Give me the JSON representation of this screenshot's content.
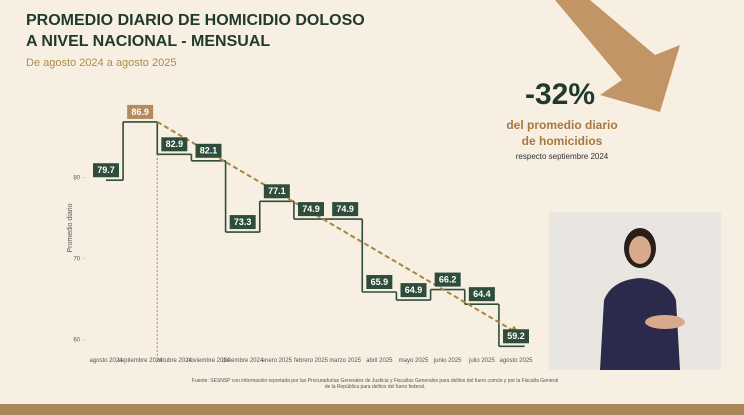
{
  "chart_data": {
    "type": "step",
    "title_lines": [
      "PROMEDIO DIARIO DE HOMICIDIO DOLOSO",
      "A NIVEL NACIONAL - MENSUAL"
    ],
    "subtitle": "De agosto 2024 a agosto 2025",
    "y_label": "Promedio diario",
    "categories": [
      "agosto 2024",
      "septiembre 2024",
      "octubre 2024",
      "noviembre 2024",
      "diciembre 2024",
      "enero 2025",
      "febrero 2025",
      "marzo 2025",
      "abril 2025",
      "mayo 2025",
      "junio 2025",
      "julio 2025",
      "agosto 2025"
    ],
    "values": [
      79.7,
      86.9,
      82.9,
      82.1,
      73.3,
      77.1,
      74.9,
      74.9,
      65.9,
      64.9,
      66.2,
      64.4,
      59.2
    ],
    "color": "#2f4d3b",
    "highlight_color": "#b58a5c",
    "trend_color": "#a88546",
    "ylim": [
      58,
      88
    ],
    "yticks": [
      60,
      70,
      80
    ],
    "callout": {
      "value": "-32%",
      "line1": "del promedio diario",
      "line2": "de homicidios",
      "line3": "respecto septiembre 2024"
    },
    "source": "Fuente: SESNSP con información reportada por las Procuradurías Generales de Justicia y Fiscalías Generales para delitos del fuero común y por la Fiscalía General de la República para delitos del fuero federal."
  }
}
